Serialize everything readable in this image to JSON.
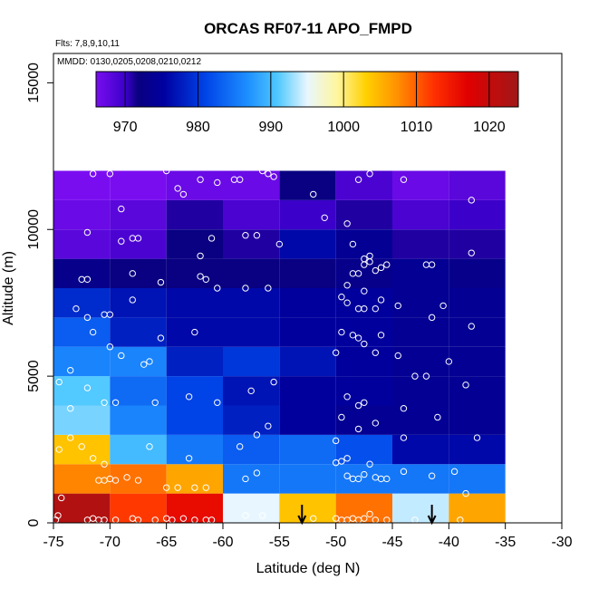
{
  "chart_data": {
    "type": "heatmap",
    "title": "ORCAS RF07-11 APO_FMPD",
    "annotation_flights": "Flts: 7,8,9,10,11",
    "annotation_dates": "MMDD: 0130,0205,0208,0210,0212",
    "xlabel": "Latitude (deg N)",
    "ylabel": "Altitude (m)",
    "xlim": [
      -75,
      -30
    ],
    "ylim": [
      0,
      16000
    ],
    "x_ticks": [
      -75,
      -70,
      -65,
      -60,
      -55,
      -50,
      -45,
      -40,
      -35,
      -30
    ],
    "x_tick_labels": [
      "-75",
      "-70",
      "-65",
      "-60",
      "-55",
      "-50",
      "-45",
      "-40",
      "-35",
      "-30"
    ],
    "y_ticks": [
      0,
      5000,
      10000,
      15000
    ],
    "y_tick_labels": [
      "0",
      "5000",
      "10000",
      "15000"
    ],
    "colorbar": {
      "min": 966,
      "max": 1024,
      "ticks": [
        970,
        980,
        990,
        1000,
        1010,
        1020
      ],
      "tick_labels": [
        "970",
        "980",
        "990",
        "1000",
        "1010",
        "1020"
      ]
    },
    "lat_edges": [
      -75,
      -70,
      -65,
      -60,
      -55,
      -50,
      -45,
      -40,
      -35
    ],
    "alt_edges": [
      0,
      1000,
      2000,
      3000,
      4000,
      5000,
      6000,
      7000,
      8000,
      9000,
      10000,
      11000,
      12000
    ],
    "cells": [
      [
        1022,
        1012,
        1016,
        995,
        1004,
        1009,
        994,
        1006
      ],
      [
        1008,
        1009,
        1006,
        985,
        985,
        985,
        985,
        985
      ],
      [
        1004,
        990,
        985,
        983,
        984,
        982,
        976,
        976
      ],
      [
        992,
        986,
        981,
        978,
        975,
        974,
        974,
        974
      ],
      [
        991,
        984,
        981,
        977,
        975,
        975,
        974,
        974
      ],
      [
        986,
        986,
        978,
        980,
        977,
        975,
        974,
        974
      ],
      [
        983,
        978,
        976,
        976,
        975,
        975,
        974,
        974
      ],
      [
        979,
        977,
        976,
        976,
        975,
        975,
        974,
        974
      ],
      [
        973,
        972,
        972,
        972,
        972,
        973,
        974,
        973
      ],
      [
        968,
        969,
        972,
        971,
        976,
        974,
        971,
        971
      ],
      [
        967,
        968,
        971,
        969,
        970,
        971,
        969,
        970
      ],
      [
        966,
        966,
        967,
        967,
        972,
        969,
        967,
        968
      ]
    ],
    "arrows_lat": [
      -53,
      -41.5
    ],
    "points": [
      [
        -74.8,
        100
      ],
      [
        -74.6,
        250
      ],
      [
        -74.3,
        850
      ],
      [
        -72,
        100
      ],
      [
        -71.5,
        150
      ],
      [
        -71,
        100
      ],
      [
        -70.5,
        100
      ],
      [
        -69.5,
        100
      ],
      [
        -68,
        150
      ],
      [
        -67.5,
        100
      ],
      [
        -66,
        100
      ],
      [
        -65,
        150
      ],
      [
        -64.5,
        100
      ],
      [
        -63.5,
        150
      ],
      [
        -62.5,
        100
      ],
      [
        -61.5,
        100
      ],
      [
        -61,
        100
      ],
      [
        -58,
        250
      ],
      [
        -56.5,
        250
      ],
      [
        -52,
        150
      ],
      [
        -50,
        150
      ],
      [
        -49.5,
        100
      ],
      [
        -49,
        100
      ],
      [
        -48.5,
        150
      ],
      [
        -48,
        100
      ],
      [
        -47.5,
        150
      ],
      [
        -47,
        300
      ],
      [
        -46.5,
        100
      ],
      [
        -45.5,
        100
      ],
      [
        -43,
        100
      ],
      [
        -39,
        100
      ],
      [
        -71,
        1450
      ],
      [
        -70.5,
        1450
      ],
      [
        -70,
        1500
      ],
      [
        -69.5,
        1450
      ],
      [
        -68.5,
        1550
      ],
      [
        -67.5,
        1450
      ],
      [
        -65,
        1200
      ],
      [
        -64,
        1200
      ],
      [
        -62.5,
        1200
      ],
      [
        -61.5,
        1200
      ],
      [
        -58,
        1500
      ],
      [
        -57,
        1700
      ],
      [
        -50,
        2050
      ],
      [
        -49.5,
        2100
      ],
      [
        -49,
        1600
      ],
      [
        -48.5,
        1500
      ],
      [
        -48,
        1500
      ],
      [
        -47.5,
        1650
      ],
      [
        -47,
        2000
      ],
      [
        -46.5,
        1550
      ],
      [
        -46,
        1500
      ],
      [
        -45.5,
        1500
      ],
      [
        -44,
        1750
      ],
      [
        -41.5,
        1600
      ],
      [
        -39.5,
        1750
      ],
      [
        -38.5,
        1000
      ],
      [
        -74.5,
        2500
      ],
      [
        -73.5,
        2900
      ],
      [
        -72.5,
        2600
      ],
      [
        -71.5,
        2200
      ],
      [
        -70.5,
        2000
      ],
      [
        -66.5,
        2600
      ],
      [
        -63,
        2200
      ],
      [
        -58.5,
        2600
      ],
      [
        -57,
        3000
      ],
      [
        -56,
        3300
      ],
      [
        -50,
        2800
      ],
      [
        -49,
        2200
      ],
      [
        -48,
        3200
      ],
      [
        -46.5,
        3400
      ],
      [
        -44,
        2900
      ],
      [
        -41,
        3600
      ],
      [
        -37.5,
        2900
      ],
      [
        -74.5,
        4800
      ],
      [
        -73.5,
        3900
      ],
      [
        -72,
        4600
      ],
      [
        -70.5,
        4100
      ],
      [
        -69.5,
        4100
      ],
      [
        -66,
        4100
      ],
      [
        -63,
        4300
      ],
      [
        -60.5,
        4100
      ],
      [
        -57.5,
        4500
      ],
      [
        -55.5,
        4800
      ],
      [
        -49.5,
        3600
      ],
      [
        -49,
        4300
      ],
      [
        -48,
        4000
      ],
      [
        -47.5,
        4100
      ],
      [
        -44,
        3900
      ],
      [
        -42,
        5000
      ],
      [
        -38.5,
        4700
      ],
      [
        -73.5,
        5200
      ],
      [
        -70,
        6000
      ],
      [
        -69,
        5700
      ],
      [
        -67,
        5400
      ],
      [
        -66.5,
        5500
      ],
      [
        -50,
        5800
      ],
      [
        -49.5,
        6500
      ],
      [
        -48.5,
        6400
      ],
      [
        -48,
        6300
      ],
      [
        -47.5,
        6100
      ],
      [
        -46.5,
        5800
      ],
      [
        -46,
        6400
      ],
      [
        -44.5,
        5700
      ],
      [
        -43,
        5000
      ],
      [
        -40,
        5500
      ],
      [
        -38,
        6700
      ],
      [
        -73,
        7300
      ],
      [
        -72,
        7000
      ],
      [
        -71.5,
        6500
      ],
      [
        -70.5,
        7100
      ],
      [
        -70,
        7100
      ],
      [
        -68,
        7600
      ],
      [
        -65.5,
        6300
      ],
      [
        -62.5,
        6500
      ],
      [
        -49.5,
        7700
      ],
      [
        -49,
        7500
      ],
      [
        -48,
        7300
      ],
      [
        -47.5,
        7300
      ],
      [
        -47.5,
        7900
      ],
      [
        -46.5,
        7300
      ],
      [
        -46,
        7600
      ],
      [
        -44.5,
        7400
      ],
      [
        -41.5,
        7000
      ],
      [
        -40.5,
        7400
      ],
      [
        -72.5,
        8300
      ],
      [
        -72,
        8300
      ],
      [
        -68,
        8500
      ],
      [
        -65.5,
        8200
      ],
      [
        -62,
        8400
      ],
      [
        -61.5,
        8300
      ],
      [
        -60.5,
        8000
      ],
      [
        -58,
        8000
      ],
      [
        -56,
        8000
      ],
      [
        -49,
        8100
      ],
      [
        -48.5,
        8500
      ],
      [
        -48,
        8500
      ],
      [
        -47.5,
        8800
      ],
      [
        -47,
        8900
      ],
      [
        -46.5,
        8600
      ],
      [
        -46,
        8700
      ],
      [
        -45.5,
        8800
      ],
      [
        -42,
        8800
      ],
      [
        -41.5,
        8800
      ],
      [
        -38,
        9200
      ],
      [
        -69,
        9600
      ],
      [
        -68,
        9700
      ],
      [
        -67.5,
        9700
      ],
      [
        -62,
        9100
      ],
      [
        -61,
        9700
      ],
      [
        -58,
        9800
      ],
      [
        -57,
        9800
      ],
      [
        -55,
        9500
      ],
      [
        -48.5,
        9500
      ],
      [
        -47.5,
        9000
      ],
      [
        -47,
        9100
      ],
      [
        -72,
        9900
      ],
      [
        -69,
        10700
      ],
      [
        -64,
        11400
      ],
      [
        -63.5,
        11200
      ],
      [
        -62,
        11700
      ],
      [
        -60.5,
        11600
      ],
      [
        -59,
        11700
      ],
      [
        -58.5,
        11700
      ],
      [
        -56,
        11900
      ],
      [
        -52,
        11200
      ],
      [
        -51,
        10400
      ],
      [
        -49,
        10200
      ],
      [
        -48,
        11700
      ],
      [
        -47,
        11900
      ],
      [
        -44,
        11700
      ],
      [
        -38,
        11000
      ],
      [
        -71.5,
        11900
      ],
      [
        -70,
        11900
      ],
      [
        -65,
        12000
      ],
      [
        -56.5,
        12000
      ],
      [
        -55.5,
        11800
      ]
    ]
  }
}
